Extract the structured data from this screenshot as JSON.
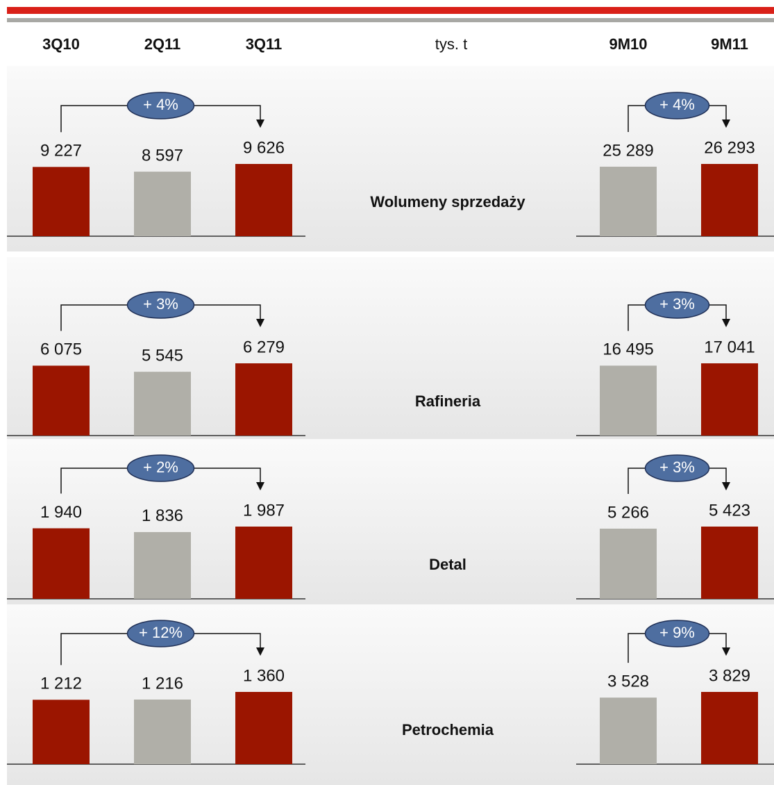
{
  "chart_data": {
    "type": "bar",
    "unit_label": "tys. t",
    "categories": [
      "3Q10",
      "2Q11",
      "3Q11",
      "9M10",
      "9M11"
    ],
    "category_colors": [
      "#9b1500",
      "#b0afa8",
      "#9b1500",
      "#b0afa8",
      "#9b1500"
    ],
    "series": [
      {
        "name": "Wolumeny sprzedaży",
        "values": [
          9227,
          8597,
          9626,
          25289,
          26293
        ],
        "value_labels": [
          "9 227",
          "8 597",
          "9 626",
          "25 289",
          "26 293"
        ],
        "changes": [
          "+ 4%",
          "+ 4%"
        ]
      },
      {
        "name": "Rafineria",
        "values": [
          6075,
          5545,
          6279,
          16495,
          17041
        ],
        "value_labels": [
          "6 075",
          "5 545",
          "6 279",
          "16 495",
          "17 041"
        ],
        "changes": [
          "+ 3%",
          "+ 3%"
        ]
      },
      {
        "name": "Detal",
        "values": [
          1940,
          1836,
          1987,
          5266,
          5423
        ],
        "value_labels": [
          "1 940",
          "1 836",
          "1 987",
          "5 266",
          "5 423"
        ],
        "changes": [
          "+ 2%",
          "+ 3%"
        ]
      },
      {
        "name": "Petrochemia",
        "values": [
          1212,
          1216,
          1360,
          3528,
          3829
        ],
        "value_labels": [
          "1 212",
          "1 216",
          "1 360",
          "3 528",
          "3 829"
        ],
        "changes": [
          "+ 12%",
          "+ 9%"
        ]
      }
    ]
  }
}
